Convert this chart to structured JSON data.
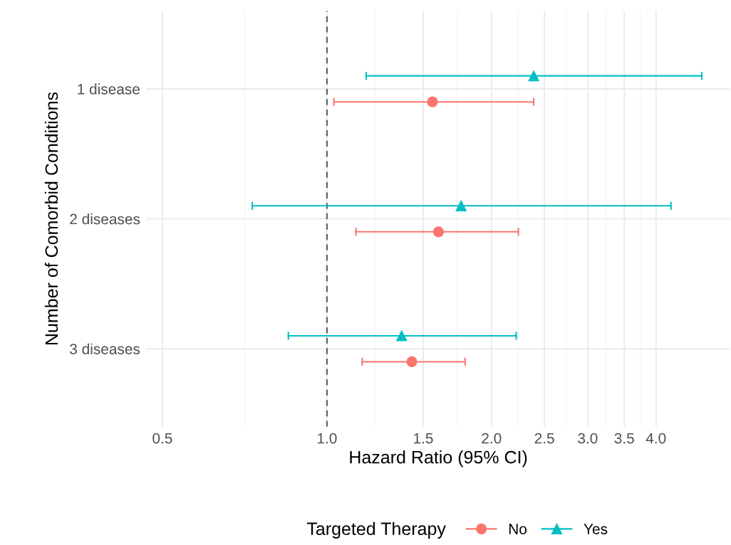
{
  "chart_data": {
    "type": "scatter",
    "orientation": "horizontal",
    "categories": [
      "1 disease",
      "2 diseases",
      "3 diseases"
    ],
    "xlabel": "Hazard Ratio (95% CI)",
    "ylabel": "Number of Comorbid Conditions",
    "legend_title": "Targeted Therapy",
    "legend": "bottom",
    "log": "x",
    "grid": true,
    "xlim": [
      0.467,
      5.47
    ],
    "xticks": [
      0.5,
      {
        "value": 1,
        "label": "1.0"
      },
      1.5,
      {
        "value": 2,
        "label": "2.0"
      },
      2.5,
      {
        "value": 3,
        "label": "3.0"
      },
      3.5,
      {
        "value": 4,
        "label": "4.0"
      }
    ],
    "ref_lines": [
      {
        "axis": "x",
        "value": 1,
        "color": "#595959",
        "line_style": "dashed"
      }
    ],
    "series": [
      {
        "name": "No",
        "color": "#f8766d",
        "marker": "circle",
        "values": [
          1.56,
          1.6,
          1.43
        ],
        "errors": [
          [
            1.03,
            2.39
          ],
          [
            1.13,
            2.24
          ],
          [
            1.16,
            1.79
          ]
        ]
      },
      {
        "name": "Yes",
        "color": "#00bfc4",
        "marker": "triangle",
        "values": [
          2.39,
          1.76,
          1.37
        ],
        "errors": [
          [
            1.18,
            4.85
          ],
          [
            0.73,
            4.26
          ],
          [
            0.85,
            2.22
          ]
        ]
      }
    ]
  }
}
